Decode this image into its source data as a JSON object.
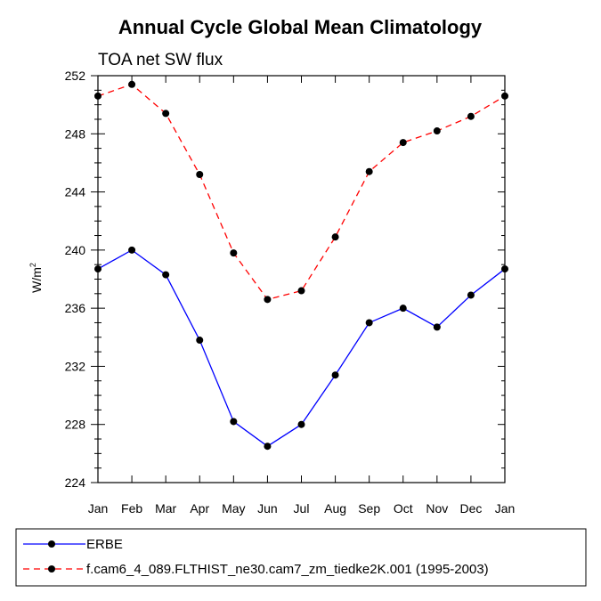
{
  "chart_data": {
    "type": "line",
    "title": "Annual Cycle Global Mean Climatology",
    "subtitle": "TOA net SW flux",
    "ylabel_base": "W/m",
    "ylabel_sup": "2",
    "xlabel": "",
    "categories": [
      "Jan",
      "Feb",
      "Mar",
      "Apr",
      "May",
      "Jun",
      "Jul",
      "Aug",
      "Sep",
      "Oct",
      "Nov",
      "Dec",
      "Jan"
    ],
    "ylim": [
      224,
      252
    ],
    "yticks": [
      224,
      228,
      232,
      236,
      240,
      244,
      248,
      252
    ],
    "series": [
      {
        "name": "ERBE",
        "color": "#0000ff",
        "dash": "solid",
        "values": [
          238.7,
          240.0,
          238.3,
          233.8,
          228.2,
          226.5,
          228.0,
          231.4,
          235.0,
          236.0,
          234.7,
          236.9,
          238.7
        ]
      },
      {
        "name": "f.cam6_4_089.FLTHIST_ne30.cam7_zm_tiedke2K.001 (1995-2003)",
        "color": "#ff0000",
        "dash": "dashed",
        "values": [
          250.6,
          251.4,
          249.4,
          245.2,
          239.8,
          236.6,
          237.2,
          240.9,
          245.4,
          247.4,
          248.2,
          249.2,
          250.6
        ]
      }
    ]
  }
}
